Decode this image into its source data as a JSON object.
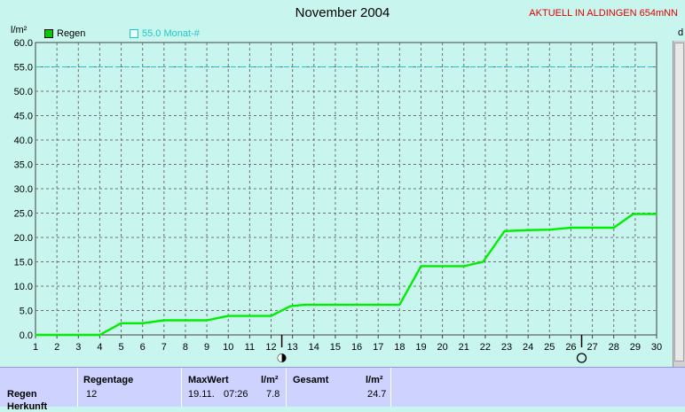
{
  "title": "November 2004",
  "station": "AKTUELL IN ALDINGEN 654mNN",
  "edge_label": "d",
  "y_unit": "l/m²",
  "legend": {
    "regen": "Regen",
    "monat": "55.0 Monat-#"
  },
  "colors": {
    "background": "#c8f6ee",
    "series": "#00ee00",
    "reference": "#1ec8c8",
    "grid": "#707070",
    "station": "#e00000"
  },
  "moon_icons": [
    {
      "day": 12.5,
      "icon": "new-moon-icon"
    },
    {
      "day": 26.5,
      "icon": "full-moon-icon"
    }
  ],
  "chart_data": {
    "type": "line",
    "title": "November 2004",
    "ylabel": "l/m²",
    "xlim": [
      1,
      30
    ],
    "ylim": [
      0,
      60
    ],
    "y_ticks": [
      "0.0",
      "5.0",
      "10.0",
      "15.0",
      "20.0",
      "25.0",
      "30.0",
      "35.0",
      "40.0",
      "45.0",
      "50.0",
      "55.0",
      "60.0"
    ],
    "x_ticks": [
      "1",
      "2",
      "3",
      "4",
      "5",
      "6",
      "7",
      "8",
      "9",
      "10",
      "11",
      "12",
      "13",
      "14",
      "15",
      "16",
      "17",
      "18",
      "19",
      "20",
      "21",
      "22",
      "23",
      "24",
      "25",
      "26",
      "27",
      "28",
      "29",
      "30"
    ],
    "grid": true,
    "reference_line": {
      "name": "55.0 Monat-#",
      "value": 55.0
    },
    "series": [
      {
        "name": "Regen",
        "x": [
          1,
          4,
          5,
          6,
          7,
          8,
          9,
          10,
          11,
          12,
          12.9,
          13.6,
          14,
          18,
          19,
          20,
          21,
          21.9,
          22.9,
          24,
          25,
          26,
          27,
          28,
          28.9,
          30
        ],
        "y": [
          0.0,
          0.0,
          2.4,
          2.4,
          3.0,
          3.0,
          3.0,
          3.9,
          3.9,
          3.9,
          5.9,
          6.2,
          6.2,
          6.2,
          14.1,
          14.1,
          14.1,
          15.0,
          21.3,
          21.5,
          21.6,
          22.0,
          22.0,
          22.0,
          24.8,
          24.8
        ]
      }
    ]
  },
  "stats": {
    "row_label": "Regen",
    "row_label2": "Herkunft",
    "regentage_header": "Regentage",
    "regentage_value": "12",
    "maxwert_header": "MaxWert",
    "maxwert_unit": "l/m²",
    "maxwert_date": "19.11.",
    "maxwert_time": "07:26",
    "maxwert_value": "7.8",
    "gesamt_header": "Gesamt",
    "gesamt_unit": "l/m²",
    "gesamt_value": "24.7"
  }
}
